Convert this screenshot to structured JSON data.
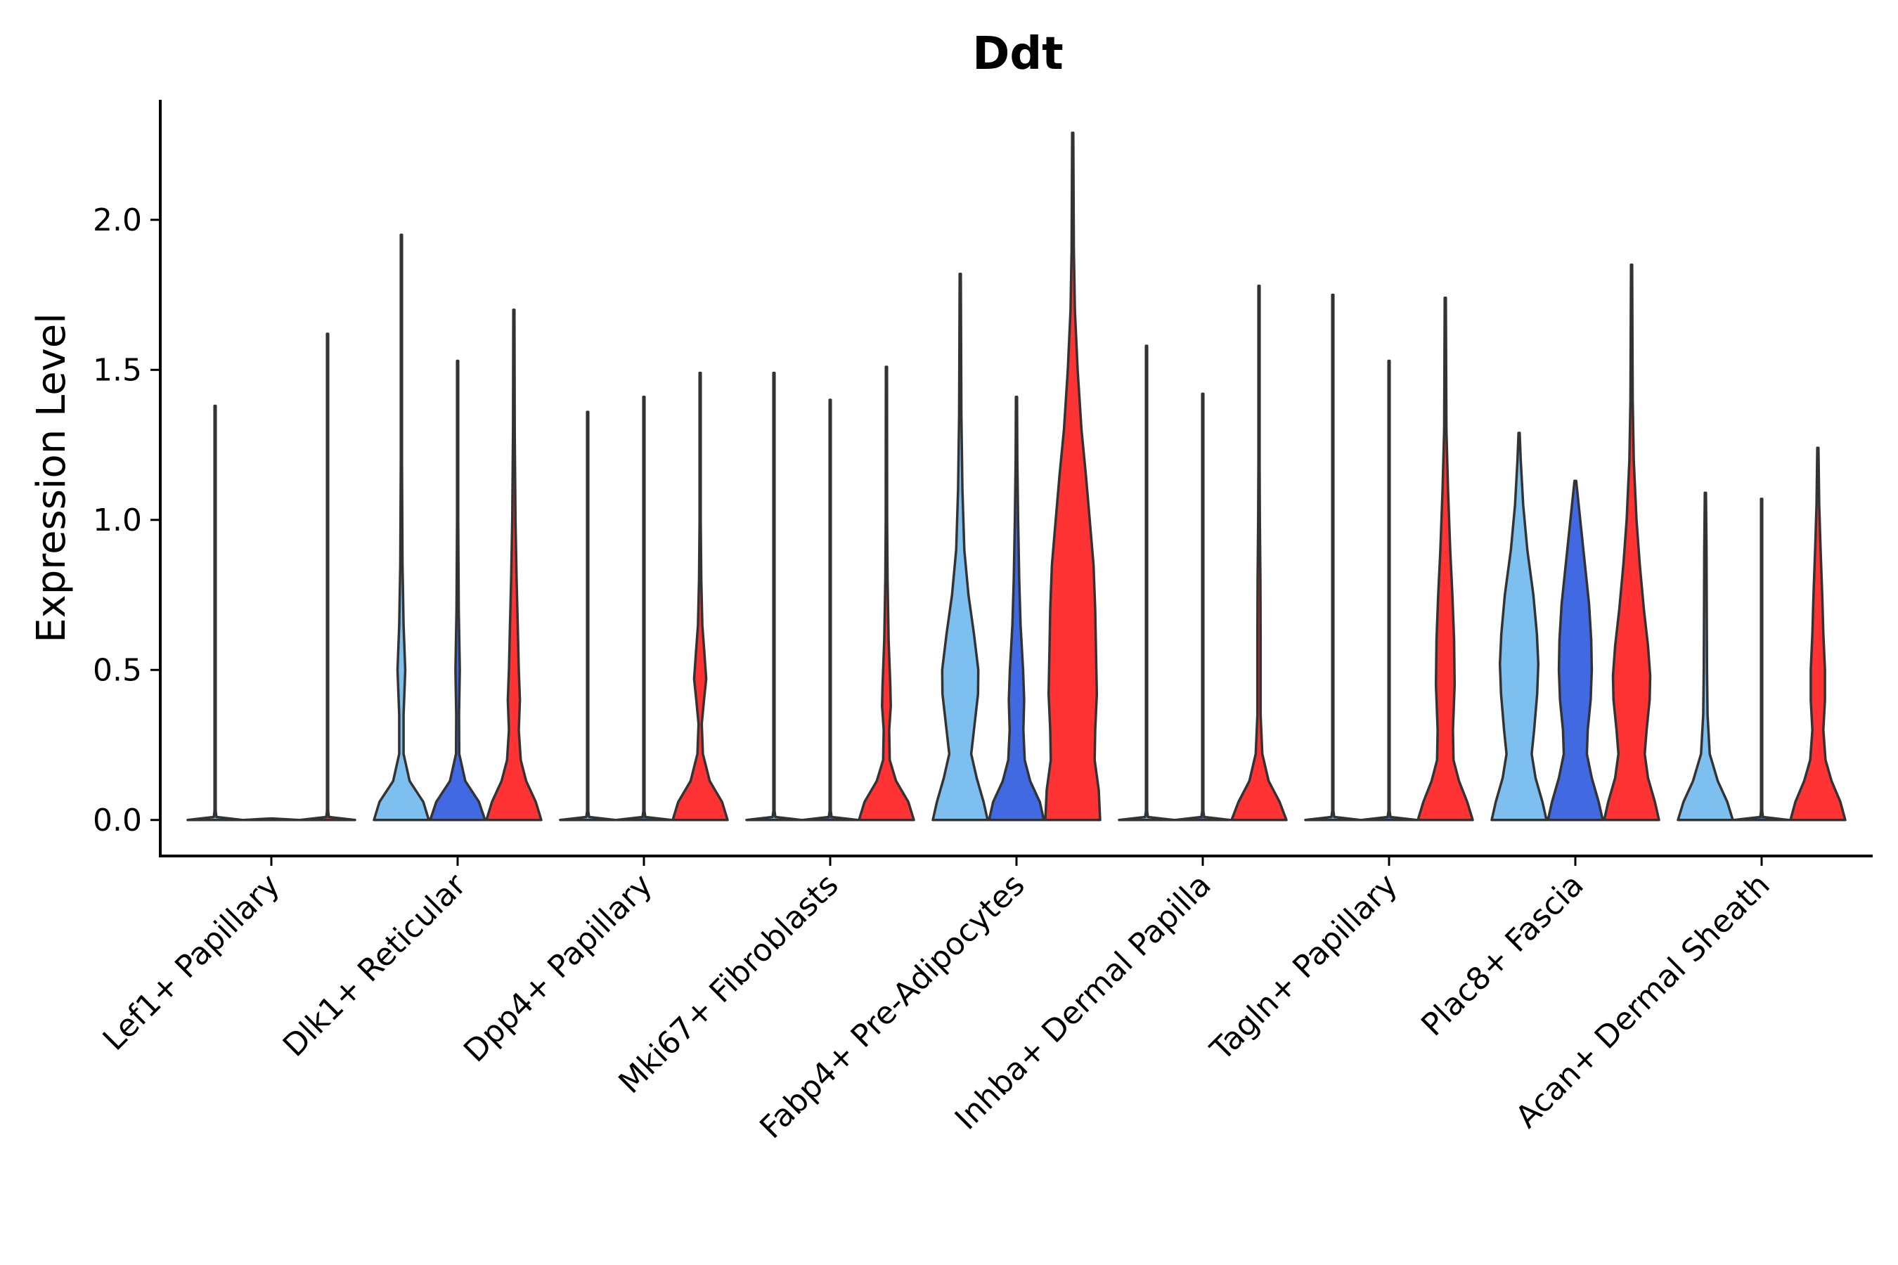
{
  "chart_data": {
    "type": "violin",
    "title": "Ddt",
    "xlabel": "",
    "ylabel": "Expression Level",
    "ylim": [
      -0.12,
      2.4
    ],
    "yticks": [
      0.0,
      0.5,
      1.0,
      1.5,
      2.0
    ],
    "ytick_labels": [
      "0.0",
      "0.5",
      "1.0",
      "1.5",
      "2.0"
    ],
    "legend": "none",
    "series_colors": {
      "light": "#7dbfee",
      "mid": "#4169e1",
      "red": "#ff3333"
    },
    "categories": [
      "Lef1+ Papillary",
      "Dlk1+ Reticular",
      "Dpp4+ Papillary",
      "Mki67+ Fibroblasts",
      "Fabp4+ Pre-Adipocytes",
      "Inhba+ Dermal Papilla",
      "Tagln+ Papillary",
      "Plac8+ Fascia",
      "Acan+ Dermal Sheath"
    ],
    "violins": [
      [
        {
          "series": "light",
          "max": 1.38,
          "profile": [
            [
              0.0,
              1.0
            ],
            [
              0.01,
              0.05
            ],
            [
              0.03,
              0.012
            ],
            [
              1.38,
              0.012
            ]
          ]
        },
        {
          "series": "mid",
          "max": 0.0,
          "profile": [
            [
              0.0,
              1.0
            ],
            [
              0.005,
              0.0
            ]
          ]
        },
        {
          "series": "red",
          "max": 1.62,
          "profile": [
            [
              0.0,
              1.0
            ],
            [
              0.01,
              0.05
            ],
            [
              0.03,
              0.012
            ],
            [
              1.62,
              0.012
            ]
          ]
        }
      ],
      [
        {
          "series": "light",
          "max": 1.95,
          "profile": [
            [
              0.0,
              1.0
            ],
            [
              0.06,
              0.8
            ],
            [
              0.13,
              0.3
            ],
            [
              0.22,
              0.08
            ],
            [
              0.35,
              0.08
            ],
            [
              0.5,
              0.14
            ],
            [
              0.65,
              0.08
            ],
            [
              0.85,
              0.04
            ],
            [
              1.2,
              0.02
            ],
            [
              1.95,
              0.012
            ]
          ]
        },
        {
          "series": "mid",
          "max": 1.53,
          "profile": [
            [
              0.0,
              1.0
            ],
            [
              0.06,
              0.78
            ],
            [
              0.13,
              0.28
            ],
            [
              0.22,
              0.06
            ],
            [
              0.35,
              0.05
            ],
            [
              0.5,
              0.08
            ],
            [
              0.7,
              0.04
            ],
            [
              1.0,
              0.02
            ],
            [
              1.53,
              0.012
            ]
          ]
        },
        {
          "series": "red",
          "max": 1.7,
          "profile": [
            [
              0.0,
              1.0
            ],
            [
              0.06,
              0.8
            ],
            [
              0.13,
              0.45
            ],
            [
              0.2,
              0.25
            ],
            [
              0.3,
              0.18
            ],
            [
              0.4,
              0.22
            ],
            [
              0.5,
              0.18
            ],
            [
              0.65,
              0.14
            ],
            [
              0.8,
              0.1
            ],
            [
              1.0,
              0.06
            ],
            [
              1.3,
              0.03
            ],
            [
              1.7,
              0.012
            ]
          ]
        }
      ],
      [
        {
          "series": "light",
          "max": 1.36,
          "profile": [
            [
              0.0,
              1.0
            ],
            [
              0.01,
              0.05
            ],
            [
              0.03,
              0.012
            ],
            [
              1.36,
              0.012
            ]
          ]
        },
        {
          "series": "mid",
          "max": 1.41,
          "profile": [
            [
              0.0,
              1.0
            ],
            [
              0.01,
              0.05
            ],
            [
              0.03,
              0.012
            ],
            [
              1.41,
              0.012
            ]
          ]
        },
        {
          "series": "red",
          "max": 1.49,
          "profile": [
            [
              0.0,
              1.0
            ],
            [
              0.06,
              0.8
            ],
            [
              0.13,
              0.35
            ],
            [
              0.22,
              0.1
            ],
            [
              0.32,
              0.06
            ],
            [
              0.4,
              0.14
            ],
            [
              0.47,
              0.22
            ],
            [
              0.55,
              0.16
            ],
            [
              0.65,
              0.08
            ],
            [
              0.8,
              0.04
            ],
            [
              1.0,
              0.02
            ],
            [
              1.49,
              0.012
            ]
          ]
        }
      ],
      [
        {
          "series": "light",
          "max": 1.49,
          "profile": [
            [
              0.0,
              1.0
            ],
            [
              0.01,
              0.05
            ],
            [
              0.03,
              0.012
            ],
            [
              1.49,
              0.012
            ]
          ]
        },
        {
          "series": "mid",
          "max": 1.4,
          "profile": [
            [
              0.0,
              1.0
            ],
            [
              0.01,
              0.05
            ],
            [
              0.03,
              0.012
            ],
            [
              1.4,
              0.012
            ]
          ]
        },
        {
          "series": "red",
          "max": 1.51,
          "profile": [
            [
              0.0,
              1.0
            ],
            [
              0.06,
              0.8
            ],
            [
              0.13,
              0.35
            ],
            [
              0.2,
              0.12
            ],
            [
              0.3,
              0.1
            ],
            [
              0.38,
              0.16
            ],
            [
              0.45,
              0.14
            ],
            [
              0.6,
              0.08
            ],
            [
              0.8,
              0.04
            ],
            [
              1.0,
              0.025
            ],
            [
              1.51,
              0.012
            ]
          ]
        }
      ],
      [
        {
          "series": "light",
          "max": 1.82,
          "profile": [
            [
              0.0,
              1.0
            ],
            [
              0.06,
              0.85
            ],
            [
              0.14,
              0.6
            ],
            [
              0.22,
              0.4
            ],
            [
              0.3,
              0.5
            ],
            [
              0.42,
              0.65
            ],
            [
              0.5,
              0.66
            ],
            [
              0.62,
              0.5
            ],
            [
              0.75,
              0.3
            ],
            [
              0.9,
              0.15
            ],
            [
              1.1,
              0.08
            ],
            [
              1.35,
              0.04
            ],
            [
              1.82,
              0.012
            ]
          ]
        },
        {
          "series": "mid",
          "max": 1.41,
          "profile": [
            [
              0.0,
              1.0
            ],
            [
              0.06,
              0.85
            ],
            [
              0.13,
              0.5
            ],
            [
              0.2,
              0.3
            ],
            [
              0.3,
              0.25
            ],
            [
              0.4,
              0.28
            ],
            [
              0.5,
              0.24
            ],
            [
              0.65,
              0.15
            ],
            [
              0.8,
              0.1
            ],
            [
              1.0,
              0.06
            ],
            [
              1.2,
              0.03
            ],
            [
              1.41,
              0.012
            ]
          ]
        },
        {
          "series": "red",
          "max": 2.29,
          "profile": [
            [
              0.0,
              1.0
            ],
            [
              0.1,
              0.95
            ],
            [
              0.2,
              0.8
            ],
            [
              0.3,
              0.82
            ],
            [
              0.42,
              0.88
            ],
            [
              0.55,
              0.85
            ],
            [
              0.7,
              0.82
            ],
            [
              0.85,
              0.76
            ],
            [
              1.0,
              0.62
            ],
            [
              1.15,
              0.48
            ],
            [
              1.3,
              0.32
            ],
            [
              1.5,
              0.18
            ],
            [
              1.7,
              0.08
            ],
            [
              1.9,
              0.04
            ],
            [
              2.29,
              0.012
            ]
          ]
        }
      ],
      [
        {
          "series": "light",
          "max": 1.58,
          "profile": [
            [
              0.0,
              1.0
            ],
            [
              0.01,
              0.05
            ],
            [
              0.03,
              0.012
            ],
            [
              1.58,
              0.012
            ]
          ]
        },
        {
          "series": "mid",
          "max": 1.42,
          "profile": [
            [
              0.0,
              1.0
            ],
            [
              0.01,
              0.05
            ],
            [
              0.03,
              0.012
            ],
            [
              1.42,
              0.012
            ]
          ]
        },
        {
          "series": "red",
          "max": 1.78,
          "profile": [
            [
              0.0,
              1.0
            ],
            [
              0.06,
              0.75
            ],
            [
              0.13,
              0.35
            ],
            [
              0.22,
              0.12
            ],
            [
              0.35,
              0.06
            ],
            [
              0.6,
              0.06
            ],
            [
              0.8,
              0.05
            ],
            [
              1.0,
              0.03
            ],
            [
              1.2,
              0.02
            ],
            [
              1.78,
              0.012
            ]
          ]
        }
      ],
      [
        {
          "series": "light",
          "max": 1.75,
          "profile": [
            [
              0.0,
              1.0
            ],
            [
              0.01,
              0.05
            ],
            [
              0.03,
              0.012
            ],
            [
              1.75,
              0.012
            ]
          ]
        },
        {
          "series": "mid",
          "max": 1.53,
          "profile": [
            [
              0.0,
              1.0
            ],
            [
              0.01,
              0.05
            ],
            [
              0.03,
              0.012
            ],
            [
              1.53,
              0.012
            ]
          ]
        },
        {
          "series": "red",
          "max": 1.74,
          "profile": [
            [
              0.0,
              1.0
            ],
            [
              0.06,
              0.8
            ],
            [
              0.13,
              0.5
            ],
            [
              0.2,
              0.3
            ],
            [
              0.3,
              0.28
            ],
            [
              0.45,
              0.34
            ],
            [
              0.6,
              0.32
            ],
            [
              0.75,
              0.26
            ],
            [
              0.9,
              0.18
            ],
            [
              1.1,
              0.1
            ],
            [
              1.3,
              0.04
            ],
            [
              1.74,
              0.012
            ]
          ]
        }
      ],
      [
        {
          "series": "light",
          "max": 1.29,
          "profile": [
            [
              0.0,
              1.0
            ],
            [
              0.06,
              0.85
            ],
            [
              0.14,
              0.6
            ],
            [
              0.22,
              0.46
            ],
            [
              0.3,
              0.55
            ],
            [
              0.42,
              0.66
            ],
            [
              0.52,
              0.7
            ],
            [
              0.62,
              0.65
            ],
            [
              0.75,
              0.52
            ],
            [
              0.9,
              0.3
            ],
            [
              1.05,
              0.15
            ],
            [
              1.2,
              0.06
            ],
            [
              1.29,
              0.02
            ]
          ]
        },
        {
          "series": "mid",
          "max": 1.13,
          "profile": [
            [
              0.0,
              1.0
            ],
            [
              0.06,
              0.85
            ],
            [
              0.14,
              0.6
            ],
            [
              0.22,
              0.42
            ],
            [
              0.3,
              0.45
            ],
            [
              0.4,
              0.56
            ],
            [
              0.5,
              0.6
            ],
            [
              0.6,
              0.58
            ],
            [
              0.72,
              0.5
            ],
            [
              0.85,
              0.35
            ],
            [
              1.0,
              0.18
            ],
            [
              1.13,
              0.03
            ]
          ]
        },
        {
          "series": "red",
          "max": 1.85,
          "profile": [
            [
              0.0,
              1.0
            ],
            [
              0.06,
              0.85
            ],
            [
              0.14,
              0.6
            ],
            [
              0.22,
              0.48
            ],
            [
              0.3,
              0.55
            ],
            [
              0.4,
              0.66
            ],
            [
              0.48,
              0.68
            ],
            [
              0.58,
              0.6
            ],
            [
              0.7,
              0.45
            ],
            [
              0.85,
              0.3
            ],
            [
              1.0,
              0.18
            ],
            [
              1.2,
              0.08
            ],
            [
              1.4,
              0.04
            ],
            [
              1.85,
              0.012
            ]
          ]
        }
      ],
      [
        {
          "series": "light",
          "max": 1.09,
          "profile": [
            [
              0.0,
              1.0
            ],
            [
              0.06,
              0.8
            ],
            [
              0.13,
              0.45
            ],
            [
              0.22,
              0.16
            ],
            [
              0.35,
              0.08
            ],
            [
              0.5,
              0.06
            ],
            [
              0.7,
              0.05
            ],
            [
              0.9,
              0.04
            ],
            [
              1.09,
              0.02
            ]
          ]
        },
        {
          "series": "mid",
          "max": 1.07,
          "profile": [
            [
              0.0,
              1.0
            ],
            [
              0.01,
              0.05
            ],
            [
              0.03,
              0.012
            ],
            [
              1.07,
              0.012
            ]
          ]
        },
        {
          "series": "red",
          "max": 1.24,
          "profile": [
            [
              0.0,
              1.0
            ],
            [
              0.06,
              0.82
            ],
            [
              0.13,
              0.5
            ],
            [
              0.2,
              0.28
            ],
            [
              0.3,
              0.2
            ],
            [
              0.4,
              0.26
            ],
            [
              0.5,
              0.26
            ],
            [
              0.62,
              0.2
            ],
            [
              0.75,
              0.16
            ],
            [
              0.9,
              0.1
            ],
            [
              1.05,
              0.05
            ],
            [
              1.24,
              0.012
            ]
          ]
        }
      ]
    ]
  }
}
